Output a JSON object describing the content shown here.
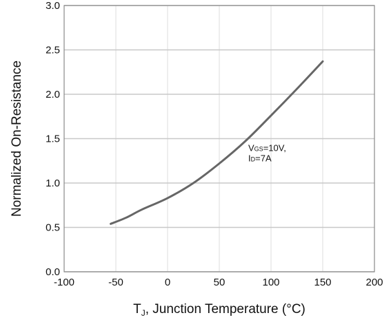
{
  "chart_data": {
    "type": "line",
    "ylabel": "Normalized On-Resistance",
    "xlabel": {
      "main": "T",
      "sub": "J",
      "rest": ", Junction Temperature (°C)"
    },
    "xlim": [
      -100,
      200
    ],
    "ylim": [
      0.0,
      3.0
    ],
    "xticks": [
      -100,
      -50,
      0,
      50,
      100,
      150,
      200
    ],
    "xtick_labels": [
      "-100",
      "-50",
      "0",
      "50",
      "100",
      "150",
      "200"
    ],
    "yticks": [
      0.0,
      0.5,
      1.0,
      1.5,
      2.0,
      2.5,
      3.0
    ],
    "ytick_labels": [
      "0.0",
      "0.5",
      "1.0",
      "1.5",
      "2.0",
      "2.5",
      "3.0"
    ],
    "grid": true,
    "series": [
      {
        "x": [
          -55,
          -40,
          -25,
          0,
          25,
          50,
          75,
          100,
          125,
          150
        ],
        "y": [
          0.54,
          0.61,
          0.7,
          0.83,
          1.0,
          1.22,
          1.47,
          1.76,
          2.06,
          2.37
        ]
      }
    ],
    "annotations": [
      {
        "line1_main": "V",
        "line1_sub": "GS",
        "line1_rest": "=10V,",
        "line2_main": "I",
        "line2_sub": "D",
        "line2_rest": "=7A",
        "x": 78,
        "y": 1.36
      }
    ],
    "colors": {
      "line": "#666666",
      "grid": "#c8c8c8",
      "axis": "#888888"
    }
  }
}
